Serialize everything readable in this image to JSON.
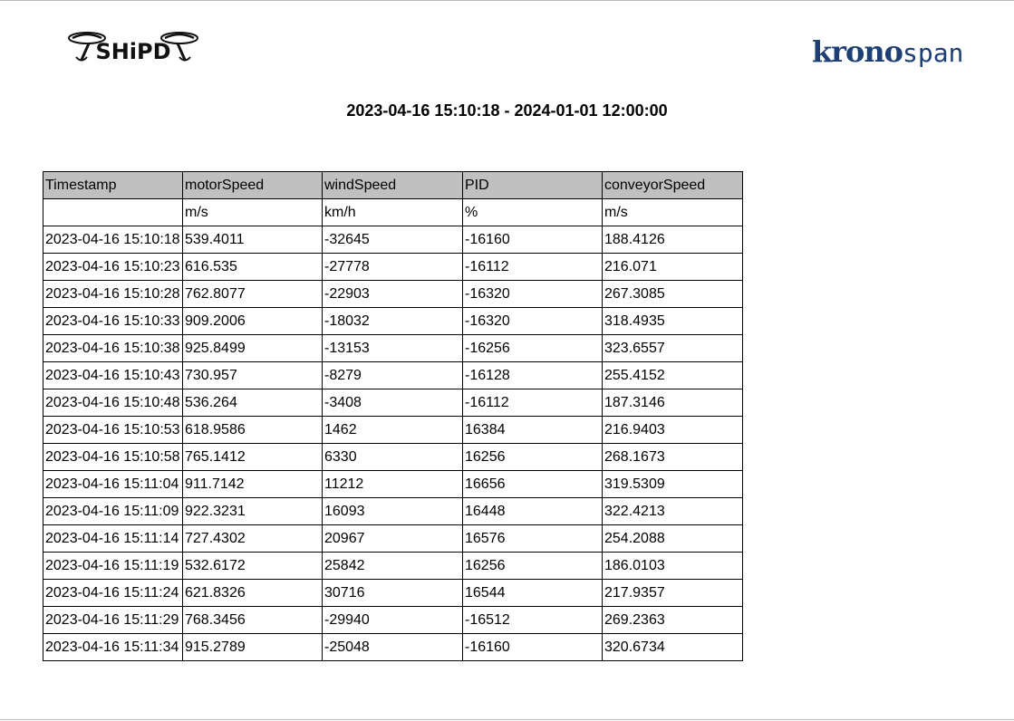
{
  "header": {
    "logo_left_text": "SHiPD",
    "logo_right_text_bold": "krono",
    "logo_right_text_light": "span",
    "title": "2023-04-16 15:10:18 - 2024-01-01 12:00:00"
  },
  "table": {
    "columns": [
      "Timestamp",
      "motorSpeed",
      "windSpeed",
      "PID",
      "conveyorSpeed"
    ],
    "units": [
      "",
      "m/s",
      "km/h",
      "%",
      "m/s"
    ],
    "rows": [
      [
        "2023-04-16 15:10:18",
        "539.4011",
        "-32645",
        "-16160",
        "188.4126"
      ],
      [
        "2023-04-16 15:10:23",
        "616.535",
        "-27778",
        "-16112",
        "216.071"
      ],
      [
        "2023-04-16 15:10:28",
        "762.8077",
        "-22903",
        "-16320",
        "267.3085"
      ],
      [
        "2023-04-16 15:10:33",
        "909.2006",
        "-18032",
        "-16320",
        "318.4935"
      ],
      [
        "2023-04-16 15:10:38",
        "925.8499",
        "-13153",
        "-16256",
        "323.6557"
      ],
      [
        "2023-04-16 15:10:43",
        "730.957",
        "-8279",
        "-16128",
        "255.4152"
      ],
      [
        "2023-04-16 15:10:48",
        "536.264",
        "-3408",
        "-16112",
        "187.3146"
      ],
      [
        "2023-04-16 15:10:53",
        "618.9586",
        "1462",
        "16384",
        "216.9403"
      ],
      [
        "2023-04-16 15:10:58",
        "765.1412",
        "6330",
        "16256",
        "268.1673"
      ],
      [
        "2023-04-16 15:11:04",
        "911.7142",
        "11212",
        "16656",
        "319.5309"
      ],
      [
        "2023-04-16 15:11:09",
        "922.3231",
        "16093",
        "16448",
        "322.4213"
      ],
      [
        "2023-04-16 15:11:14",
        "727.4302",
        "20967",
        "16576",
        "254.2088"
      ],
      [
        "2023-04-16 15:11:19",
        "532.6172",
        "25842",
        "16256",
        "186.0103"
      ],
      [
        "2023-04-16 15:11:24",
        "621.8326",
        "30716",
        "16544",
        "217.9357"
      ],
      [
        "2023-04-16 15:11:29",
        "768.3456",
        "-29940",
        "-16512",
        "269.2363"
      ],
      [
        "2023-04-16 15:11:34",
        "915.2789",
        "-25048",
        "-16160",
        "320.6734"
      ]
    ]
  }
}
